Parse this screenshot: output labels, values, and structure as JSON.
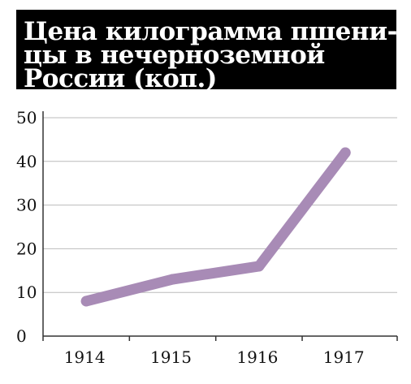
{
  "title_lines": [
    "Цена килограмма пшени-",
    "цы в нечерноземной",
    "России (коп.)"
  ],
  "colors": {
    "title_bg": "#000000",
    "title_text": "#ffffff",
    "line": "#a88bb6",
    "grid": "#bbbbbb",
    "axis": "#333333"
  },
  "chart_data": {
    "type": "line",
    "title": "Цена килограмма пшеницы в нечерноземной России (коп.)",
    "categories": [
      "1914",
      "1915",
      "1916",
      "1917"
    ],
    "series": [
      {
        "values": [
          8,
          13,
          16,
          42
        ]
      }
    ],
    "ylim": [
      0,
      50
    ],
    "yticks": [
      "0",
      "10",
      "20",
      "30",
      "40",
      "50"
    ],
    "grid": true
  }
}
